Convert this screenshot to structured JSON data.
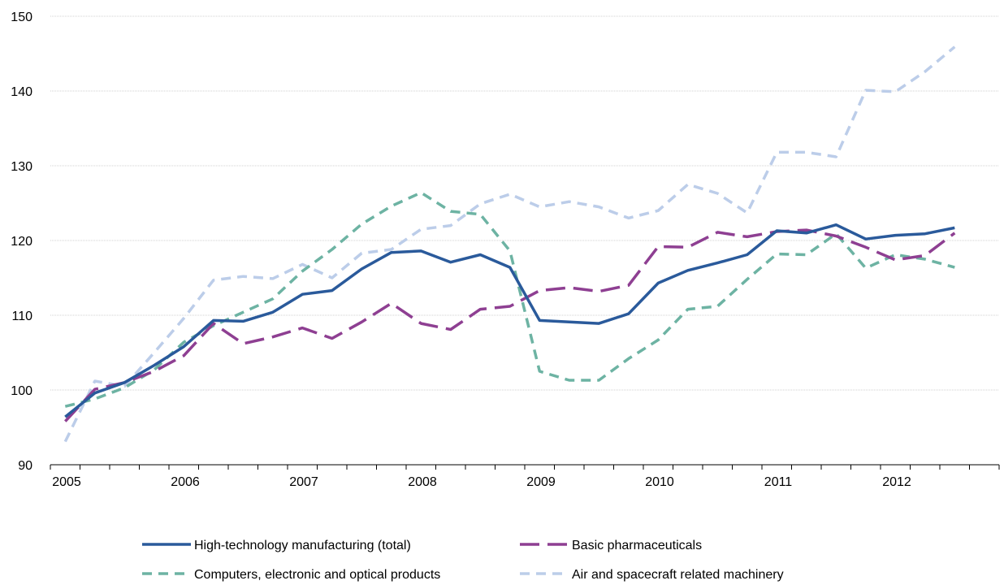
{
  "chart_data": {
    "type": "line",
    "title": "",
    "xlabel": "",
    "ylabel": "",
    "ylim": [
      90,
      150
    ],
    "y_ticks": [
      90,
      100,
      110,
      120,
      130,
      140,
      150
    ],
    "x_tick_labels": [
      "2005",
      "2006",
      "2007",
      "2008",
      "2009",
      "2010",
      "2011",
      "2012"
    ],
    "x": [
      "2005 Q1",
      "2005 Q2",
      "2005 Q3",
      "2005 Q4",
      "2006 Q1",
      "2006 Q2",
      "2006 Q3",
      "2006 Q4",
      "2007 Q1",
      "2007 Q2",
      "2007 Q3",
      "2007 Q4",
      "2008 Q1",
      "2008 Q2",
      "2008 Q3",
      "2008 Q4",
      "2009 Q1",
      "2009 Q2",
      "2009 Q3",
      "2009 Q4",
      "2010 Q1",
      "2010 Q2",
      "2010 Q3",
      "2010 Q4",
      "2011 Q1",
      "2011 Q2",
      "2011 Q3",
      "2011 Q4",
      "2012 Q1",
      "2012 Q2",
      "2012 Q3",
      "2012 Q4"
    ],
    "grid": "horizontal",
    "legend_position": "bottom",
    "series": [
      {
        "name": "High-technology manufacturing (total)",
        "color": "#2a5a9b",
        "dash": "solid",
        "values": [
          96.4,
          99.6,
          101.0,
          103.3,
          105.8,
          109.3,
          109.2,
          110.4,
          112.8,
          113.3,
          116.2,
          118.4,
          118.6,
          117.1,
          118.1,
          116.4,
          109.3,
          109.1,
          108.9,
          110.2,
          114.3,
          116.0,
          117.0,
          118.1,
          121.3,
          121.0,
          122.1,
          120.2,
          120.7,
          120.9,
          121.7,
          null
        ]
      },
      {
        "name": "Basic pharmaceuticals",
        "color": "#8e3f92",
        "dash": "long-dash",
        "values": [
          95.8,
          100.1,
          101.0,
          102.5,
          104.6,
          108.9,
          106.2,
          107.1,
          108.3,
          106.9,
          109.1,
          111.6,
          108.9,
          108.1,
          110.8,
          111.2,
          113.3,
          113.7,
          113.2,
          114.0,
          119.2,
          119.1,
          121.1,
          120.5,
          121.2,
          121.4,
          120.6,
          119.1,
          117.4,
          118.0,
          121.0,
          null
        ]
      },
      {
        "name": "Computers, electronic and optical products",
        "color": "#6db3a3",
        "dash": "dash",
        "values": [
          97.8,
          98.8,
          100.3,
          102.7,
          106.4,
          108.6,
          110.4,
          112.2,
          115.9,
          118.8,
          122.2,
          124.6,
          126.4,
          123.9,
          123.5,
          118.6,
          102.5,
          101.3,
          101.3,
          104.2,
          106.7,
          110.8,
          111.2,
          114.8,
          118.2,
          118.1,
          120.9,
          116.3,
          118.1,
          117.5,
          116.4,
          null
        ]
      },
      {
        "name": "Air and spacecraft related machinery",
        "color": "#bccde9",
        "dash": "dash",
        "values": [
          93.1,
          101.2,
          100.5,
          105.0,
          109.6,
          114.7,
          115.2,
          114.9,
          116.8,
          115.0,
          118.3,
          118.8,
          121.5,
          122.0,
          124.9,
          126.2,
          124.5,
          125.2,
          124.5,
          123.0,
          124.0,
          127.5,
          126.3,
          123.7,
          131.8,
          131.8,
          131.2,
          140.1,
          139.9,
          142.6,
          145.9,
          null
        ]
      }
    ]
  },
  "legend": {
    "items": [
      "High-technology manufacturing (total)",
      "Basic pharmaceuticals",
      "Computers, electronic and optical products",
      "Air and spacecraft related machinery"
    ]
  }
}
